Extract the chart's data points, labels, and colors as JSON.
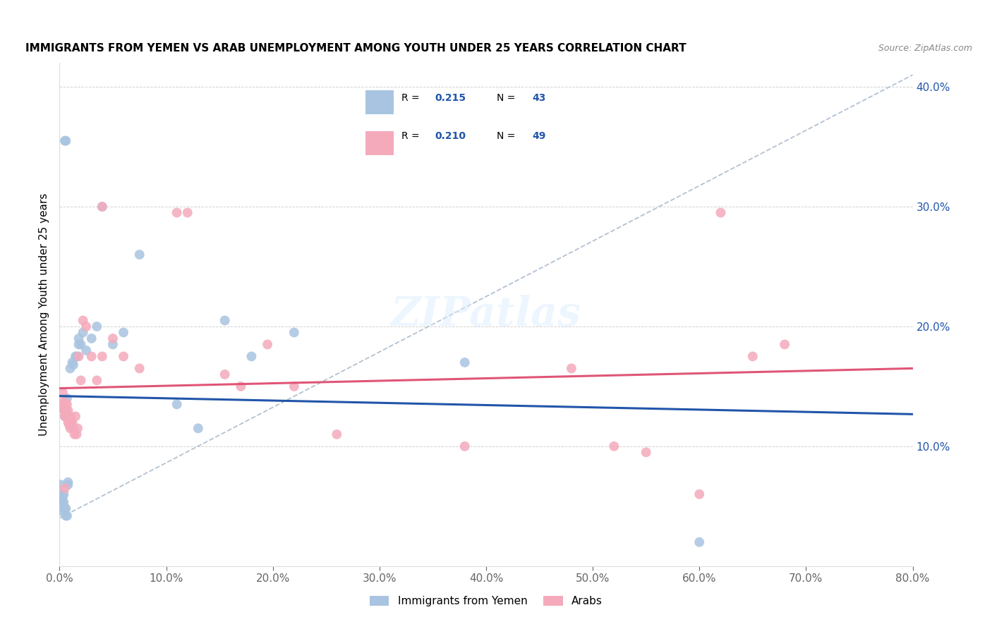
{
  "title": "IMMIGRANTS FROM YEMEN VS ARAB UNEMPLOYMENT AMONG YOUTH UNDER 25 YEARS CORRELATION CHART",
  "source": "Source: ZipAtlas.com",
  "ylabel": "Unemployment Among Youth under 25 years",
  "legend_label1": "Immigrants from Yemen",
  "legend_label2": "Arabs",
  "R1": 0.215,
  "N1": 43,
  "R2": 0.21,
  "N2": 49,
  "color_blue": "#A8C4E0",
  "color_pink": "#F4AABB",
  "line_blue": "#2255AA",
  "line_pink": "#E05577",
  "line_dash": "#AABBCC",
  "xlim": [
    0.0,
    0.8
  ],
  "ylim": [
    0.0,
    0.42
  ],
  "blue_x": [
    0.001,
    0.002,
    0.002,
    0.003,
    0.003,
    0.003,
    0.004,
    0.004,
    0.004,
    0.005,
    0.005,
    0.005,
    0.006,
    0.006,
    0.007,
    0.007,
    0.008,
    0.008,
    0.01,
    0.012,
    0.013,
    0.015,
    0.016,
    0.018,
    0.018,
    0.02,
    0.022,
    0.025,
    0.03,
    0.035,
    0.04,
    0.05,
    0.06,
    0.075,
    0.11,
    0.13,
    0.155,
    0.18,
    0.22,
    0.38,
    0.6,
    0.005,
    0.006
  ],
  "blue_y": [
    0.068,
    0.06,
    0.055,
    0.055,
    0.058,
    0.05,
    0.06,
    0.053,
    0.045,
    0.13,
    0.125,
    0.048,
    0.048,
    0.042,
    0.042,
    0.14,
    0.068,
    0.07,
    0.165,
    0.17,
    0.168,
    0.175,
    0.175,
    0.19,
    0.185,
    0.185,
    0.195,
    0.18,
    0.19,
    0.2,
    0.3,
    0.185,
    0.195,
    0.26,
    0.135,
    0.115,
    0.205,
    0.175,
    0.195,
    0.17,
    0.02,
    0.355,
    0.355
  ],
  "pink_x": [
    0.003,
    0.003,
    0.004,
    0.004,
    0.005,
    0.005,
    0.006,
    0.006,
    0.007,
    0.007,
    0.008,
    0.008,
    0.009,
    0.01,
    0.01,
    0.011,
    0.012,
    0.013,
    0.014,
    0.015,
    0.016,
    0.017,
    0.018,
    0.02,
    0.022,
    0.025,
    0.03,
    0.035,
    0.04,
    0.05,
    0.06,
    0.075,
    0.11,
    0.12,
    0.155,
    0.17,
    0.195,
    0.22,
    0.26,
    0.38,
    0.48,
    0.52,
    0.55,
    0.6,
    0.62,
    0.65,
    0.68,
    0.04,
    0.005
  ],
  "pink_y": [
    0.135,
    0.145,
    0.13,
    0.138,
    0.125,
    0.135,
    0.128,
    0.13,
    0.125,
    0.135,
    0.12,
    0.13,
    0.118,
    0.115,
    0.125,
    0.12,
    0.12,
    0.115,
    0.11,
    0.125,
    0.11,
    0.115,
    0.175,
    0.155,
    0.205,
    0.2,
    0.175,
    0.155,
    0.175,
    0.19,
    0.175,
    0.165,
    0.295,
    0.295,
    0.16,
    0.15,
    0.185,
    0.15,
    0.11,
    0.1,
    0.165,
    0.1,
    0.095,
    0.06,
    0.295,
    0.175,
    0.185,
    0.3,
    0.065
  ]
}
